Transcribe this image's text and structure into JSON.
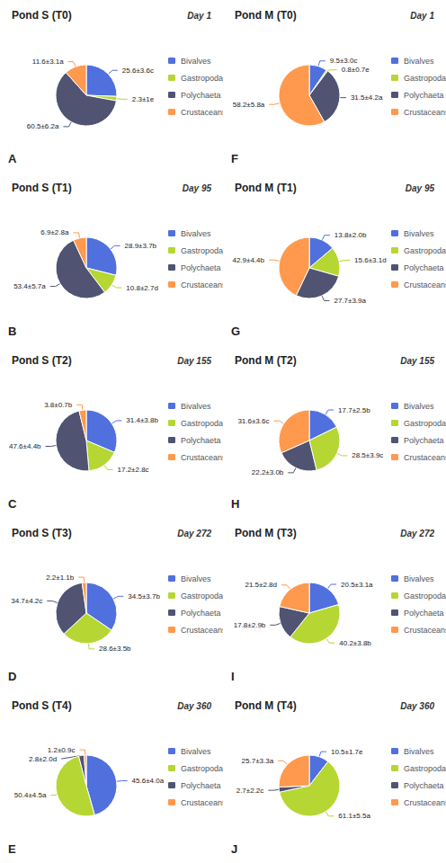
{
  "chart_data": [
    {
      "type": "pie",
      "title": "Pond S (T0)",
      "subtitle": "Day 1",
      "annotations": [
        "A"
      ],
      "categories": [
        "Bivalves",
        "Gastropoda",
        "Polychaeta",
        "Crustaceans"
      ],
      "values": [
        25.6,
        2.3,
        60.5,
        11.6
      ],
      "value_labels": [
        "25.6±3.6c",
        "2.3±1e",
        "60.5±6.2a",
        "11.6±3.1a"
      ],
      "data_labels": true,
      "legend": "right"
    },
    {
      "type": "pie",
      "title": "Pond S (T1)",
      "subtitle": "Day 95",
      "annotations": [
        "B"
      ],
      "categories": [
        "Bivalves",
        "Gastropoda",
        "Polychaeta",
        "Crustaceans"
      ],
      "values": [
        28.9,
        10.8,
        53.4,
        6.9
      ],
      "value_labels": [
        "28.9±3.7b",
        "10.8±2.7d",
        "53.4±5.7a",
        "6.9±2.8a"
      ],
      "data_labels": true,
      "legend": "right"
    },
    {
      "type": "pie",
      "title": "Pond S (T2)",
      "subtitle": "Day 155",
      "annotations": [
        "C"
      ],
      "categories": [
        "Bivalves",
        "Gastropoda",
        "Polychaeta",
        "Crustaceans"
      ],
      "values": [
        31.4,
        17.2,
        47.6,
        3.8
      ],
      "value_labels": [
        "31.4±3.8b",
        "17.2±2.8c",
        "47.6±4.4b",
        "3.8±0.7b"
      ],
      "data_labels": true,
      "legend": "right"
    },
    {
      "type": "pie",
      "title": "Pond S (T3)",
      "subtitle": "Day 272",
      "annotations": [
        "D"
      ],
      "categories": [
        "Bivalves",
        "Gastropoda",
        "Polychaeta",
        "Crustaceans"
      ],
      "values": [
        34.5,
        28.6,
        34.7,
        2.2
      ],
      "value_labels": [
        "34.5±3.7b",
        "28.6±3.5b",
        "34.7±4.2c",
        "2.2±1.1b"
      ],
      "data_labels": true,
      "legend": "right"
    },
    {
      "type": "pie",
      "title": "Pond S (T4)",
      "subtitle": "Day 360",
      "annotations": [
        "E"
      ],
      "categories": [
        "Bivalves",
        "Gastropoda",
        "Polychaeta",
        "Crustaceans"
      ],
      "values": [
        45.6,
        50.4,
        2.8,
        1.2
      ],
      "value_labels": [
        "45.6±4.0a",
        "50.4±4.5a",
        "2.8±2.0d",
        "1.2±0.9c"
      ],
      "data_labels": true,
      "legend": "right"
    },
    {
      "type": "pie",
      "title": "Pond M (T0)",
      "subtitle": "Day 1",
      "annotations": [
        "F"
      ],
      "categories": [
        "Bivalves",
        "Gastropoda",
        "Polychaeta",
        "Crustaceans"
      ],
      "values": [
        9.5,
        0.8,
        31.5,
        58.2
      ],
      "value_labels": [
        "9.5±3.0c",
        "0.8±0.7e",
        "31.5±4.2a",
        "58.2±5.8a"
      ],
      "data_labels": true,
      "legend": "right"
    },
    {
      "type": "pie",
      "title": "Pond M (T1)",
      "subtitle": "Day 95",
      "annotations": [
        "G"
      ],
      "categories": [
        "Bivalves",
        "Gastropoda",
        "Polychaeta",
        "Crustaceans"
      ],
      "values": [
        13.8,
        15.6,
        27.7,
        42.9
      ],
      "value_labels": [
        "13.8±2.0b",
        "15.6±3.1d",
        "27.7±3.9a",
        "42.9±4.4b"
      ],
      "data_labels": true,
      "legend": "right"
    },
    {
      "type": "pie",
      "title": "Pond M (T2)",
      "subtitle": "Day 155",
      "annotations": [
        "H"
      ],
      "categories": [
        "Bivalves",
        "Gastropoda",
        "Polychaeta",
        "Crustaceans"
      ],
      "values": [
        17.7,
        28.5,
        22.2,
        31.6
      ],
      "value_labels": [
        "17.7±2.5b",
        "28.5±3.9c",
        "22.2±3.0b",
        "31.6±3.6c"
      ],
      "data_labels": true,
      "legend": "right"
    },
    {
      "type": "pie",
      "title": "Pond M (T3)",
      "subtitle": "Day 272",
      "annotations": [
        "I"
      ],
      "categories": [
        "Bivalves",
        "Gastropoda",
        "Polychaeta",
        "Crustaceans"
      ],
      "values": [
        20.5,
        40.2,
        17.8,
        21.5
      ],
      "value_labels": [
        "20.5±3.1a",
        "40.2±3.8b",
        "17.8±2.9b",
        "21.5±2.8d"
      ],
      "data_labels": true,
      "legend": "right"
    },
    {
      "type": "pie",
      "title": "Pond M (T4)",
      "subtitle": "Day 360",
      "annotations": [
        "J"
      ],
      "categories": [
        "Bivalves",
        "Gastropoda",
        "Polychaeta",
        "Crustaceans"
      ],
      "values": [
        10.5,
        61.1,
        2.7,
        25.7
      ],
      "value_labels": [
        "10.5±1.7e",
        "61.1±5.5a",
        "2.7±2.2c",
        "25.7±3.3a"
      ],
      "data_labels": true,
      "legend": "right"
    }
  ]
}
